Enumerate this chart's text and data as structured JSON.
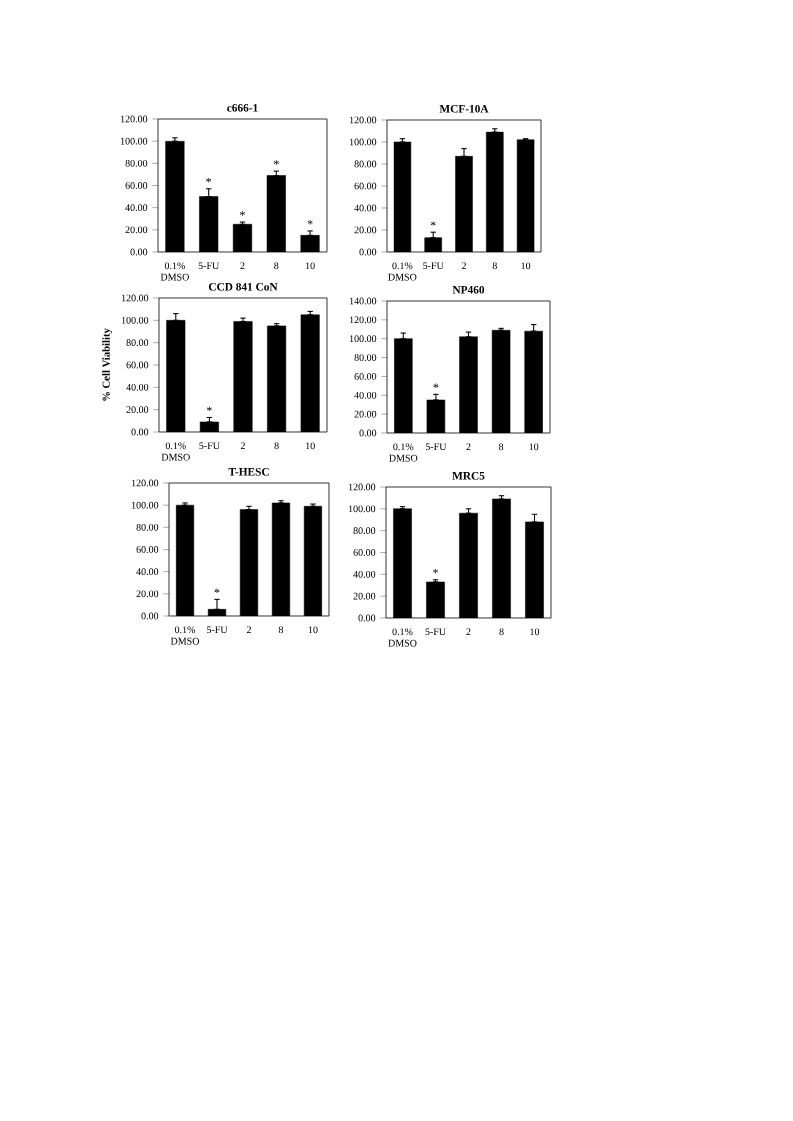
{
  "chart_data": [
    {
      "type": "bar",
      "title": "c666-1",
      "categories": [
        "0.1% DMSO",
        "5-FU",
        "2",
        "8",
        "10"
      ],
      "values": [
        100,
        50,
        25,
        69,
        15
      ],
      "errors": [
        [
          100,
          103
        ],
        [
          50,
          57
        ],
        [
          25,
          27
        ],
        [
          69,
          73
        ],
        [
          15,
          19
        ]
      ],
      "color": "#000000",
      "ylim": [
        0,
        120
      ],
      "yticks": [
        {
          "value": 0,
          "label": "0.00"
        },
        {
          "value": 20,
          "label": "20.00"
        },
        {
          "value": 40,
          "label": "40.00"
        },
        {
          "value": 60,
          "label": "60.00"
        },
        {
          "value": 80,
          "label": "80.00"
        },
        {
          "value": 100,
          "label": "100.00"
        },
        {
          "value": 120,
          "label": "120.00"
        }
      ],
      "annotations": [
        {
          "text": "*",
          "x": "5-FU",
          "y": 50
        },
        {
          "text": "*",
          "x": "2",
          "y": 25
        },
        {
          "text": "*",
          "x": "8",
          "y": 69
        },
        {
          "text": "*",
          "x": "10",
          "y": 15
        }
      ]
    },
    {
      "type": "bar",
      "title": "MCF-10A",
      "categories": [
        "0.1% DMSO",
        "5-FU",
        "2",
        "8",
        "10"
      ],
      "values": [
        100,
        13,
        87,
        109,
        102
      ],
      "errors": [
        [
          100,
          103
        ],
        [
          13,
          18
        ],
        [
          87,
          94
        ],
        [
          109,
          112
        ],
        [
          102,
          103
        ]
      ],
      "color": "#000000",
      "ylim": [
        0,
        120
      ],
      "yticks": [
        {
          "value": 0,
          "label": "0.00"
        },
        {
          "value": 20,
          "label": "20.00"
        },
        {
          "value": 40,
          "label": "40.00"
        },
        {
          "value": 60,
          "label": "60.00"
        },
        {
          "value": 80,
          "label": "80.00"
        },
        {
          "value": 100,
          "label": "100.00"
        },
        {
          "value": 120,
          "label": "120.00"
        }
      ],
      "annotations": [
        {
          "text": "*",
          "x": "5-FU",
          "y": 13
        }
      ]
    },
    {
      "type": "bar",
      "title": "CCD 841 CoN",
      "ylabel": "% Cell Viability",
      "categories": [
        "0.1% DMSO",
        "5-FU",
        "2",
        "8",
        "10"
      ],
      "values": [
        100,
        9,
        99,
        95,
        105
      ],
      "errors": [
        [
          100,
          106
        ],
        [
          9,
          13
        ],
        [
          99,
          102
        ],
        [
          95,
          97
        ],
        [
          105,
          108
        ]
      ],
      "color": "#000000",
      "ylim": [
        0,
        120
      ],
      "yticks": [
        {
          "value": 0,
          "label": "0.00"
        },
        {
          "value": 20,
          "label": "20.00"
        },
        {
          "value": 40,
          "label": "40.00"
        },
        {
          "value": 60,
          "label": "60.00"
        },
        {
          "value": 80,
          "label": "80.00"
        },
        {
          "value": 100,
          "label": "100.00"
        },
        {
          "value": 120,
          "label": "120.00"
        }
      ],
      "annotations": [
        {
          "text": "*",
          "x": "5-FU",
          "y": 9
        }
      ]
    },
    {
      "type": "bar",
      "title": "NP460",
      "categories": [
        "0.1% DMSO",
        "5-FU",
        "2",
        "8",
        "10"
      ],
      "values": [
        100,
        35,
        102,
        109,
        108
      ],
      "errors": [
        [
          100,
          106
        ],
        [
          35,
          41
        ],
        [
          102,
          107
        ],
        [
          109,
          111
        ],
        [
          108,
          115
        ]
      ],
      "color": "#000000",
      "ylim": [
        0,
        140
      ],
      "yticks": [
        {
          "value": 0,
          "label": "0.00"
        },
        {
          "value": 20,
          "label": "20.00"
        },
        {
          "value": 40,
          "label": "40.00"
        },
        {
          "value": 60,
          "label": "60.00"
        },
        {
          "value": 80,
          "label": "80.00"
        },
        {
          "value": 100,
          "label": "100.00"
        },
        {
          "value": 120,
          "label": "120.00"
        },
        {
          "value": 140,
          "label": "140.00"
        }
      ],
      "annotations": [
        {
          "text": "*",
          "x": "5-FU",
          "y": 35
        }
      ]
    },
    {
      "type": "bar",
      "title": "T-HESC",
      "categories": [
        "0.1% DMSO",
        "5-FU",
        "2",
        "8",
        "10"
      ],
      "values": [
        100,
        6,
        96,
        102,
        99
      ],
      "errors": [
        [
          100,
          102
        ],
        [
          6,
          15
        ],
        [
          96,
          99
        ],
        [
          102,
          104
        ],
        [
          99,
          101
        ]
      ],
      "color": "#000000",
      "ylim": [
        0,
        120
      ],
      "yticks": [
        {
          "value": 0,
          "label": "0.00"
        },
        {
          "value": 20,
          "label": "20.00"
        },
        {
          "value": 40,
          "label": "40.00"
        },
        {
          "value": 60,
          "label": "60.00"
        },
        {
          "value": 80,
          "label": "80.00"
        },
        {
          "value": 100,
          "label": "100.00"
        },
        {
          "value": 120,
          "label": "120.00"
        }
      ],
      "annotations": [
        {
          "text": "*",
          "x": "5-FU",
          "y": 6
        }
      ]
    },
    {
      "type": "bar",
      "title": "MRC5",
      "categories": [
        "0.1% DMSO",
        "5-FU",
        "2",
        "8",
        "10"
      ],
      "values": [
        100,
        33,
        96,
        109,
        88
      ],
      "errors": [
        [
          100,
          102
        ],
        [
          33,
          35
        ],
        [
          96,
          100
        ],
        [
          109,
          112
        ],
        [
          88,
          95
        ]
      ],
      "color": "#000000",
      "ylim": [
        0,
        120
      ],
      "yticks": [
        {
          "value": 0,
          "label": "0.00"
        },
        {
          "value": 20,
          "label": "20.00"
        },
        {
          "value": 40,
          "label": "40.00"
        },
        {
          "value": 60,
          "label": "60.00"
        },
        {
          "value": 80,
          "label": "80.00"
        },
        {
          "value": 100,
          "label": "100.00"
        },
        {
          "value": 120,
          "label": "120.00"
        }
      ],
      "annotations": [
        {
          "text": "*",
          "x": "5-FU",
          "y": 33
        }
      ]
    }
  ]
}
